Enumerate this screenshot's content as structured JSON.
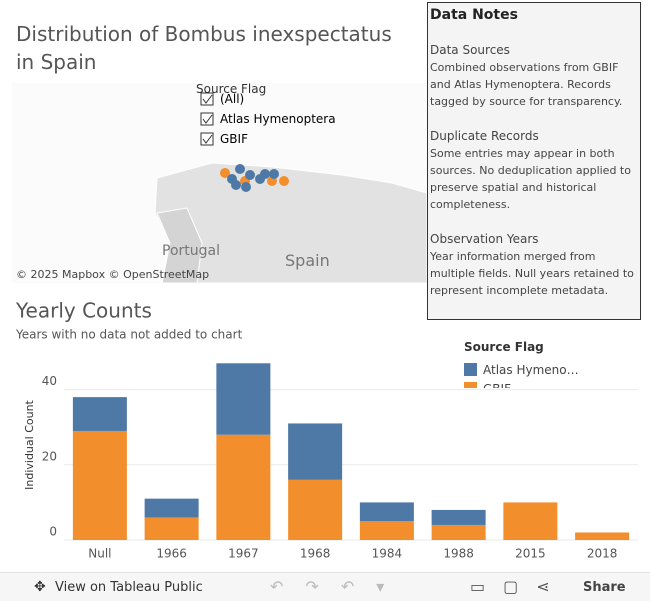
{
  "dashboard": {
    "title": "Distribution of Bombus inexspectatus in Spain",
    "map": {
      "filter_title": "Source Flag",
      "filter_options": [
        "(All)",
        "Atlas Hymenoptera",
        "GBIF"
      ],
      "labels": [
        "Portugal",
        "Spain"
      ],
      "attribution": "© 2025 Mapbox © OpenStreetMap"
    },
    "notes": {
      "title": "Data Notes",
      "sections": [
        {
          "heading": "Data Sources",
          "text": "Combined observations from GBIF and Atlas Hymenoptera. Records tagged by source for transparency."
        },
        {
          "heading": "Duplicate Records",
          "text": "Some entries may appear in both sources. No deduplication applied to preserve spatial and historical completeness."
        },
        {
          "heading": "Observation Years",
          "text": "Year information merged from multiple fields. Null years retained to represent incomplete metadata."
        }
      ]
    },
    "toolbar": {
      "view": "View on Tableau Public",
      "share": "Share"
    }
  },
  "chart_data": {
    "type": "stacked_bar",
    "title": "Yearly Counts",
    "subtitle": "Years with no data not added to chart",
    "y_label": "Individual Count",
    "legend_title": "Source Flag",
    "categories": [
      "Null",
      "1966",
      "1967",
      "1968",
      "1984",
      "1988",
      "2015",
      "2018"
    ],
    "series": [
      {
        "name": "Atlas Hymenoptera",
        "color": "#4e79a7",
        "values": [
          9,
          5,
          19,
          15,
          5,
          4,
          0,
          0
        ]
      },
      {
        "name": "GBIF",
        "color": "#f28e2b",
        "values": [
          29,
          6,
          28,
          16,
          5,
          4,
          10,
          2
        ]
      }
    ],
    "ylim": [
      0,
      50
    ],
    "yticks": [
      0,
      20,
      40
    ],
    "grid": true
  }
}
